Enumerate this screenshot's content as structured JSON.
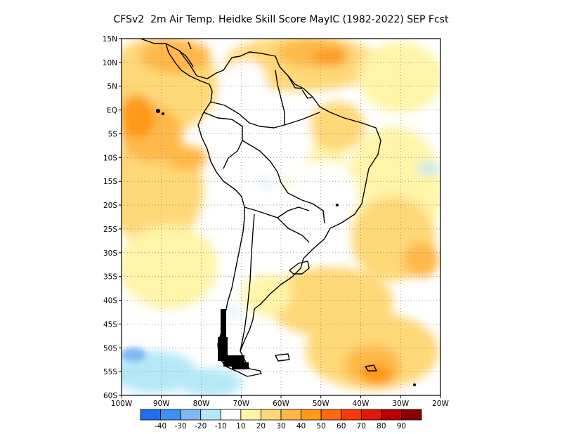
{
  "title": "CFSv2  2m Air Temp. Heidke Skill Score MayIC (1982-2022) SEP Fcst",
  "map": {
    "lat_labels": [
      "15N",
      "10N",
      "5N",
      "EQ",
      "5S",
      "10S",
      "15S",
      "20S",
      "25S",
      "30S",
      "35S",
      "40S",
      "45S",
      "50S",
      "55S",
      "60S"
    ],
    "lat_values": [
      15,
      10,
      5,
      0,
      -5,
      -10,
      -15,
      -20,
      -25,
      -30,
      -35,
      -40,
      -45,
      -50,
      -55,
      -60
    ],
    "lon_labels": [
      "100W",
      "90W",
      "80W",
      "70W",
      "60W",
      "50W",
      "40W",
      "30W",
      "20W"
    ],
    "lon_values": [
      -100,
      -90,
      -80,
      -70,
      -60,
      -50,
      -40,
      -30,
      -20
    ],
    "lat_range": [
      -60,
      15
    ],
    "lon_range": [
      -100,
      -20
    ],
    "background_color": "#ffffff",
    "grid": "dotted"
  },
  "colorbar": {
    "labels": [
      "-40",
      "-30",
      "-20",
      "-10",
      "10",
      "20",
      "30",
      "40",
      "50",
      "60",
      "70",
      "80",
      "90"
    ],
    "colors": [
      "#1f6fe8",
      "#3d8ff0",
      "#80b8f5",
      "#b4e8f8",
      "#ffffff",
      "#fff4a8",
      "#ffd878",
      "#ffb848",
      "#ff9a18",
      "#ff6a10",
      "#f83a0a",
      "#e01808",
      "#b80000",
      "#8c0000"
    ]
  }
}
